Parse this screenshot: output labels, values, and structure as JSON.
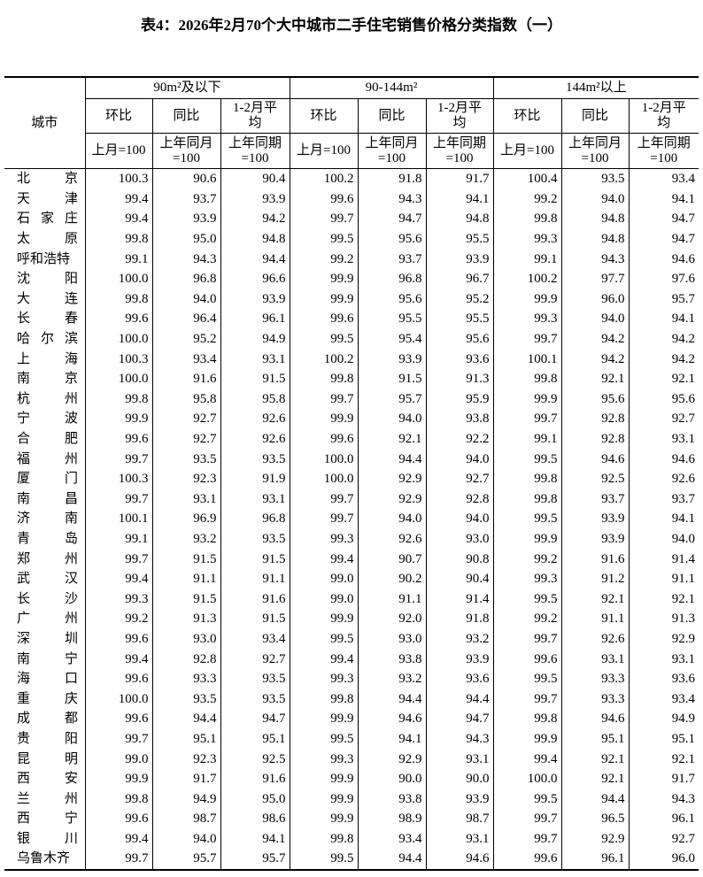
{
  "title": "表4：2026年2月70个大中城市二手住宅销售价格分类指数（一）",
  "header": {
    "city": "城市",
    "groups": [
      "90m²及以下",
      "90-144m²",
      "144m²以上"
    ],
    "sub": [
      "环比",
      "同比",
      "1-2月平均"
    ],
    "base": [
      "上月=100",
      "上年同月=100",
      "上年同期=100"
    ]
  },
  "rows": [
    {
      "city": "北京",
      "v": [
        "100.3",
        "90.6",
        "90.4",
        "100.2",
        "91.8",
        "91.7",
        "100.4",
        "93.5",
        "93.4"
      ]
    },
    {
      "city": "天津",
      "v": [
        "99.4",
        "93.7",
        "93.9",
        "99.6",
        "94.3",
        "94.1",
        "99.2",
        "94.0",
        "94.1"
      ]
    },
    {
      "city": "石家庄",
      "v": [
        "99.4",
        "93.9",
        "94.2",
        "99.7",
        "94.7",
        "94.8",
        "99.8",
        "94.8",
        "94.7"
      ]
    },
    {
      "city": "太原",
      "v": [
        "99.8",
        "95.0",
        "94.8",
        "99.5",
        "95.6",
        "95.5",
        "99.3",
        "94.8",
        "94.7"
      ]
    },
    {
      "city": "呼和浩特",
      "v": [
        "99.1",
        "94.3",
        "94.4",
        "99.2",
        "93.7",
        "93.9",
        "99.1",
        "94.3",
        "94.6"
      ]
    },
    {
      "city": "沈阳",
      "v": [
        "100.0",
        "96.8",
        "96.6",
        "99.9",
        "96.8",
        "96.7",
        "100.2",
        "97.7",
        "97.6"
      ]
    },
    {
      "city": "大连",
      "v": [
        "99.8",
        "94.0",
        "93.9",
        "99.9",
        "95.6",
        "95.2",
        "99.9",
        "96.0",
        "95.7"
      ]
    },
    {
      "city": "长春",
      "v": [
        "99.6",
        "96.4",
        "96.1",
        "99.6",
        "95.5",
        "95.5",
        "99.3",
        "94.0",
        "94.1"
      ]
    },
    {
      "city": "哈尔滨",
      "v": [
        "100.0",
        "95.2",
        "94.9",
        "99.5",
        "95.4",
        "95.6",
        "99.7",
        "94.2",
        "94.2"
      ]
    },
    {
      "city": "上海",
      "v": [
        "100.3",
        "93.4",
        "93.1",
        "100.2",
        "93.9",
        "93.6",
        "100.1",
        "94.2",
        "94.2"
      ]
    },
    {
      "city": "南京",
      "v": [
        "100.0",
        "91.6",
        "91.5",
        "99.8",
        "91.5",
        "91.3",
        "99.8",
        "92.1",
        "92.1"
      ]
    },
    {
      "city": "杭州",
      "v": [
        "99.8",
        "95.8",
        "95.8",
        "99.7",
        "95.7",
        "95.9",
        "99.9",
        "95.6",
        "95.6"
      ]
    },
    {
      "city": "宁波",
      "v": [
        "99.9",
        "92.7",
        "92.6",
        "99.9",
        "94.0",
        "93.8",
        "99.7",
        "92.8",
        "92.7"
      ]
    },
    {
      "city": "合肥",
      "v": [
        "99.6",
        "92.7",
        "92.6",
        "99.6",
        "92.1",
        "92.2",
        "99.1",
        "92.8",
        "93.1"
      ]
    },
    {
      "city": "福州",
      "v": [
        "99.7",
        "93.5",
        "93.5",
        "100.0",
        "94.4",
        "94.0",
        "99.5",
        "94.6",
        "94.6"
      ]
    },
    {
      "city": "厦门",
      "v": [
        "100.3",
        "92.3",
        "91.9",
        "100.0",
        "92.9",
        "92.7",
        "99.8",
        "92.5",
        "92.6"
      ]
    },
    {
      "city": "南昌",
      "v": [
        "99.7",
        "93.1",
        "93.1",
        "99.7",
        "92.9",
        "92.8",
        "99.8",
        "93.7",
        "93.7"
      ]
    },
    {
      "city": "济南",
      "v": [
        "100.1",
        "96.9",
        "96.8",
        "99.7",
        "94.0",
        "94.0",
        "99.5",
        "93.9",
        "94.1"
      ]
    },
    {
      "city": "青岛",
      "v": [
        "99.1",
        "93.2",
        "93.5",
        "99.3",
        "92.6",
        "93.0",
        "99.9",
        "93.9",
        "94.0"
      ]
    },
    {
      "city": "郑州",
      "v": [
        "99.7",
        "91.5",
        "91.5",
        "99.4",
        "90.7",
        "90.8",
        "99.2",
        "91.6",
        "91.4"
      ]
    },
    {
      "city": "武汉",
      "v": [
        "99.4",
        "91.1",
        "91.1",
        "99.0",
        "90.2",
        "90.4",
        "99.3",
        "91.2",
        "91.1"
      ]
    },
    {
      "city": "长沙",
      "v": [
        "99.3",
        "91.5",
        "91.6",
        "99.0",
        "91.1",
        "91.4",
        "99.5",
        "92.1",
        "92.1"
      ]
    },
    {
      "city": "广州",
      "v": [
        "99.2",
        "91.3",
        "91.5",
        "99.9",
        "92.0",
        "91.8",
        "99.2",
        "91.1",
        "91.3"
      ]
    },
    {
      "city": "深圳",
      "v": [
        "99.6",
        "93.0",
        "93.4",
        "99.5",
        "93.0",
        "93.2",
        "99.7",
        "92.6",
        "92.9"
      ]
    },
    {
      "city": "南宁",
      "v": [
        "99.4",
        "92.8",
        "92.7",
        "99.4",
        "93.8",
        "93.9",
        "99.6",
        "93.1",
        "93.1"
      ]
    },
    {
      "city": "海口",
      "v": [
        "99.6",
        "93.3",
        "93.5",
        "99.3",
        "93.2",
        "93.6",
        "99.5",
        "93.3",
        "93.6"
      ]
    },
    {
      "city": "重庆",
      "v": [
        "100.0",
        "93.5",
        "93.5",
        "99.8",
        "94.4",
        "94.4",
        "99.7",
        "93.3",
        "93.4"
      ]
    },
    {
      "city": "成都",
      "v": [
        "99.6",
        "94.4",
        "94.7",
        "99.9",
        "94.6",
        "94.7",
        "99.8",
        "94.6",
        "94.9"
      ]
    },
    {
      "city": "贵阳",
      "v": [
        "99.7",
        "95.1",
        "95.1",
        "99.5",
        "94.1",
        "94.3",
        "99.9",
        "95.1",
        "95.1"
      ]
    },
    {
      "city": "昆明",
      "v": [
        "99.0",
        "92.3",
        "92.5",
        "99.3",
        "92.9",
        "93.1",
        "99.4",
        "92.1",
        "92.1"
      ]
    },
    {
      "city": "西安",
      "v": [
        "99.9",
        "91.7",
        "91.6",
        "99.9",
        "90.0",
        "90.0",
        "100.0",
        "92.1",
        "91.7"
      ]
    },
    {
      "city": "兰州",
      "v": [
        "99.8",
        "94.9",
        "95.0",
        "99.9",
        "93.8",
        "93.9",
        "99.5",
        "94.4",
        "94.3"
      ]
    },
    {
      "city": "西宁",
      "v": [
        "99.6",
        "98.7",
        "98.6",
        "99.9",
        "98.9",
        "98.7",
        "99.7",
        "96.5",
        "96.1"
      ]
    },
    {
      "city": "银川",
      "v": [
        "99.4",
        "94.0",
        "94.1",
        "99.8",
        "93.4",
        "93.1",
        "99.7",
        "92.9",
        "92.7"
      ]
    },
    {
      "city": "乌鲁木齐",
      "v": [
        "99.7",
        "95.7",
        "95.7",
        "99.5",
        "94.4",
        "94.6",
        "99.6",
        "96.1",
        "96.0"
      ]
    }
  ]
}
